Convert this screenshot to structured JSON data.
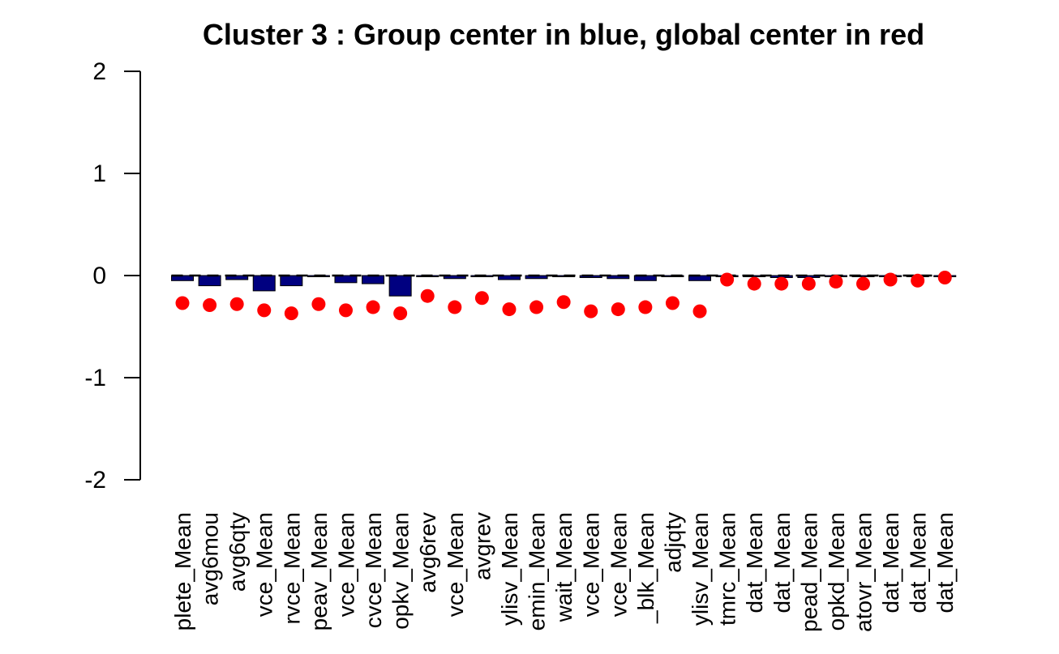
{
  "chart_data": {
    "type": "bar",
    "title": "Cluster 3 : Group center in blue, global center in red",
    "xlabel": "",
    "ylabel": "",
    "ylim": [
      -2,
      2
    ],
    "yticks": [
      "-2",
      "-1",
      "0",
      "1",
      "2"
    ],
    "grid": false,
    "legend": "none",
    "bar_color": "#000080",
    "point_color": "#ff0000",
    "categories": [
      "plete_Mean",
      "avg6mou",
      "avg6qty",
      "vce_Mean",
      "rvce_Mean",
      "peav_Mean",
      "vce_Mean",
      "cvce_Mean",
      "opkv_Mean",
      "avg6rev",
      "vce_Mean",
      "avgrev",
      "ylisv_Mean",
      "emin_Mean",
      "wait_Mean",
      "vce_Mean",
      "vce_Mean",
      "_blk_Mean",
      "adjqty",
      "ylisv_Mean",
      "tmrc_Mean",
      "dat_Mean",
      "dat_Mean",
      "pead_Mean",
      "opkd_Mean",
      "atovr_Mean",
      "dat_Mean",
      "dat_Mean",
      "dat_Mean"
    ],
    "series": [
      {
        "name": "Group center",
        "values": [
          -0.05,
          -0.1,
          -0.04,
          -0.15,
          -0.1,
          0.0,
          -0.07,
          -0.08,
          -0.2,
          0.0,
          -0.03,
          -0.01,
          -0.04,
          -0.03,
          -0.01,
          -0.02,
          -0.03,
          -0.05,
          -0.01,
          -0.05,
          -0.01,
          -0.01,
          -0.02,
          -0.02,
          -0.01,
          -0.01,
          -0.01,
          -0.01,
          0.0
        ]
      },
      {
        "name": "Global center",
        "values": [
          -0.27,
          -0.29,
          -0.28,
          -0.34,
          -0.37,
          -0.28,
          -0.34,
          -0.31,
          -0.37,
          -0.2,
          -0.31,
          -0.22,
          -0.33,
          -0.31,
          -0.26,
          -0.35,
          -0.33,
          -0.31,
          -0.27,
          -0.35,
          -0.04,
          -0.08,
          -0.08,
          -0.08,
          -0.06,
          -0.08,
          -0.04,
          -0.05,
          -0.02
        ]
      }
    ]
  }
}
